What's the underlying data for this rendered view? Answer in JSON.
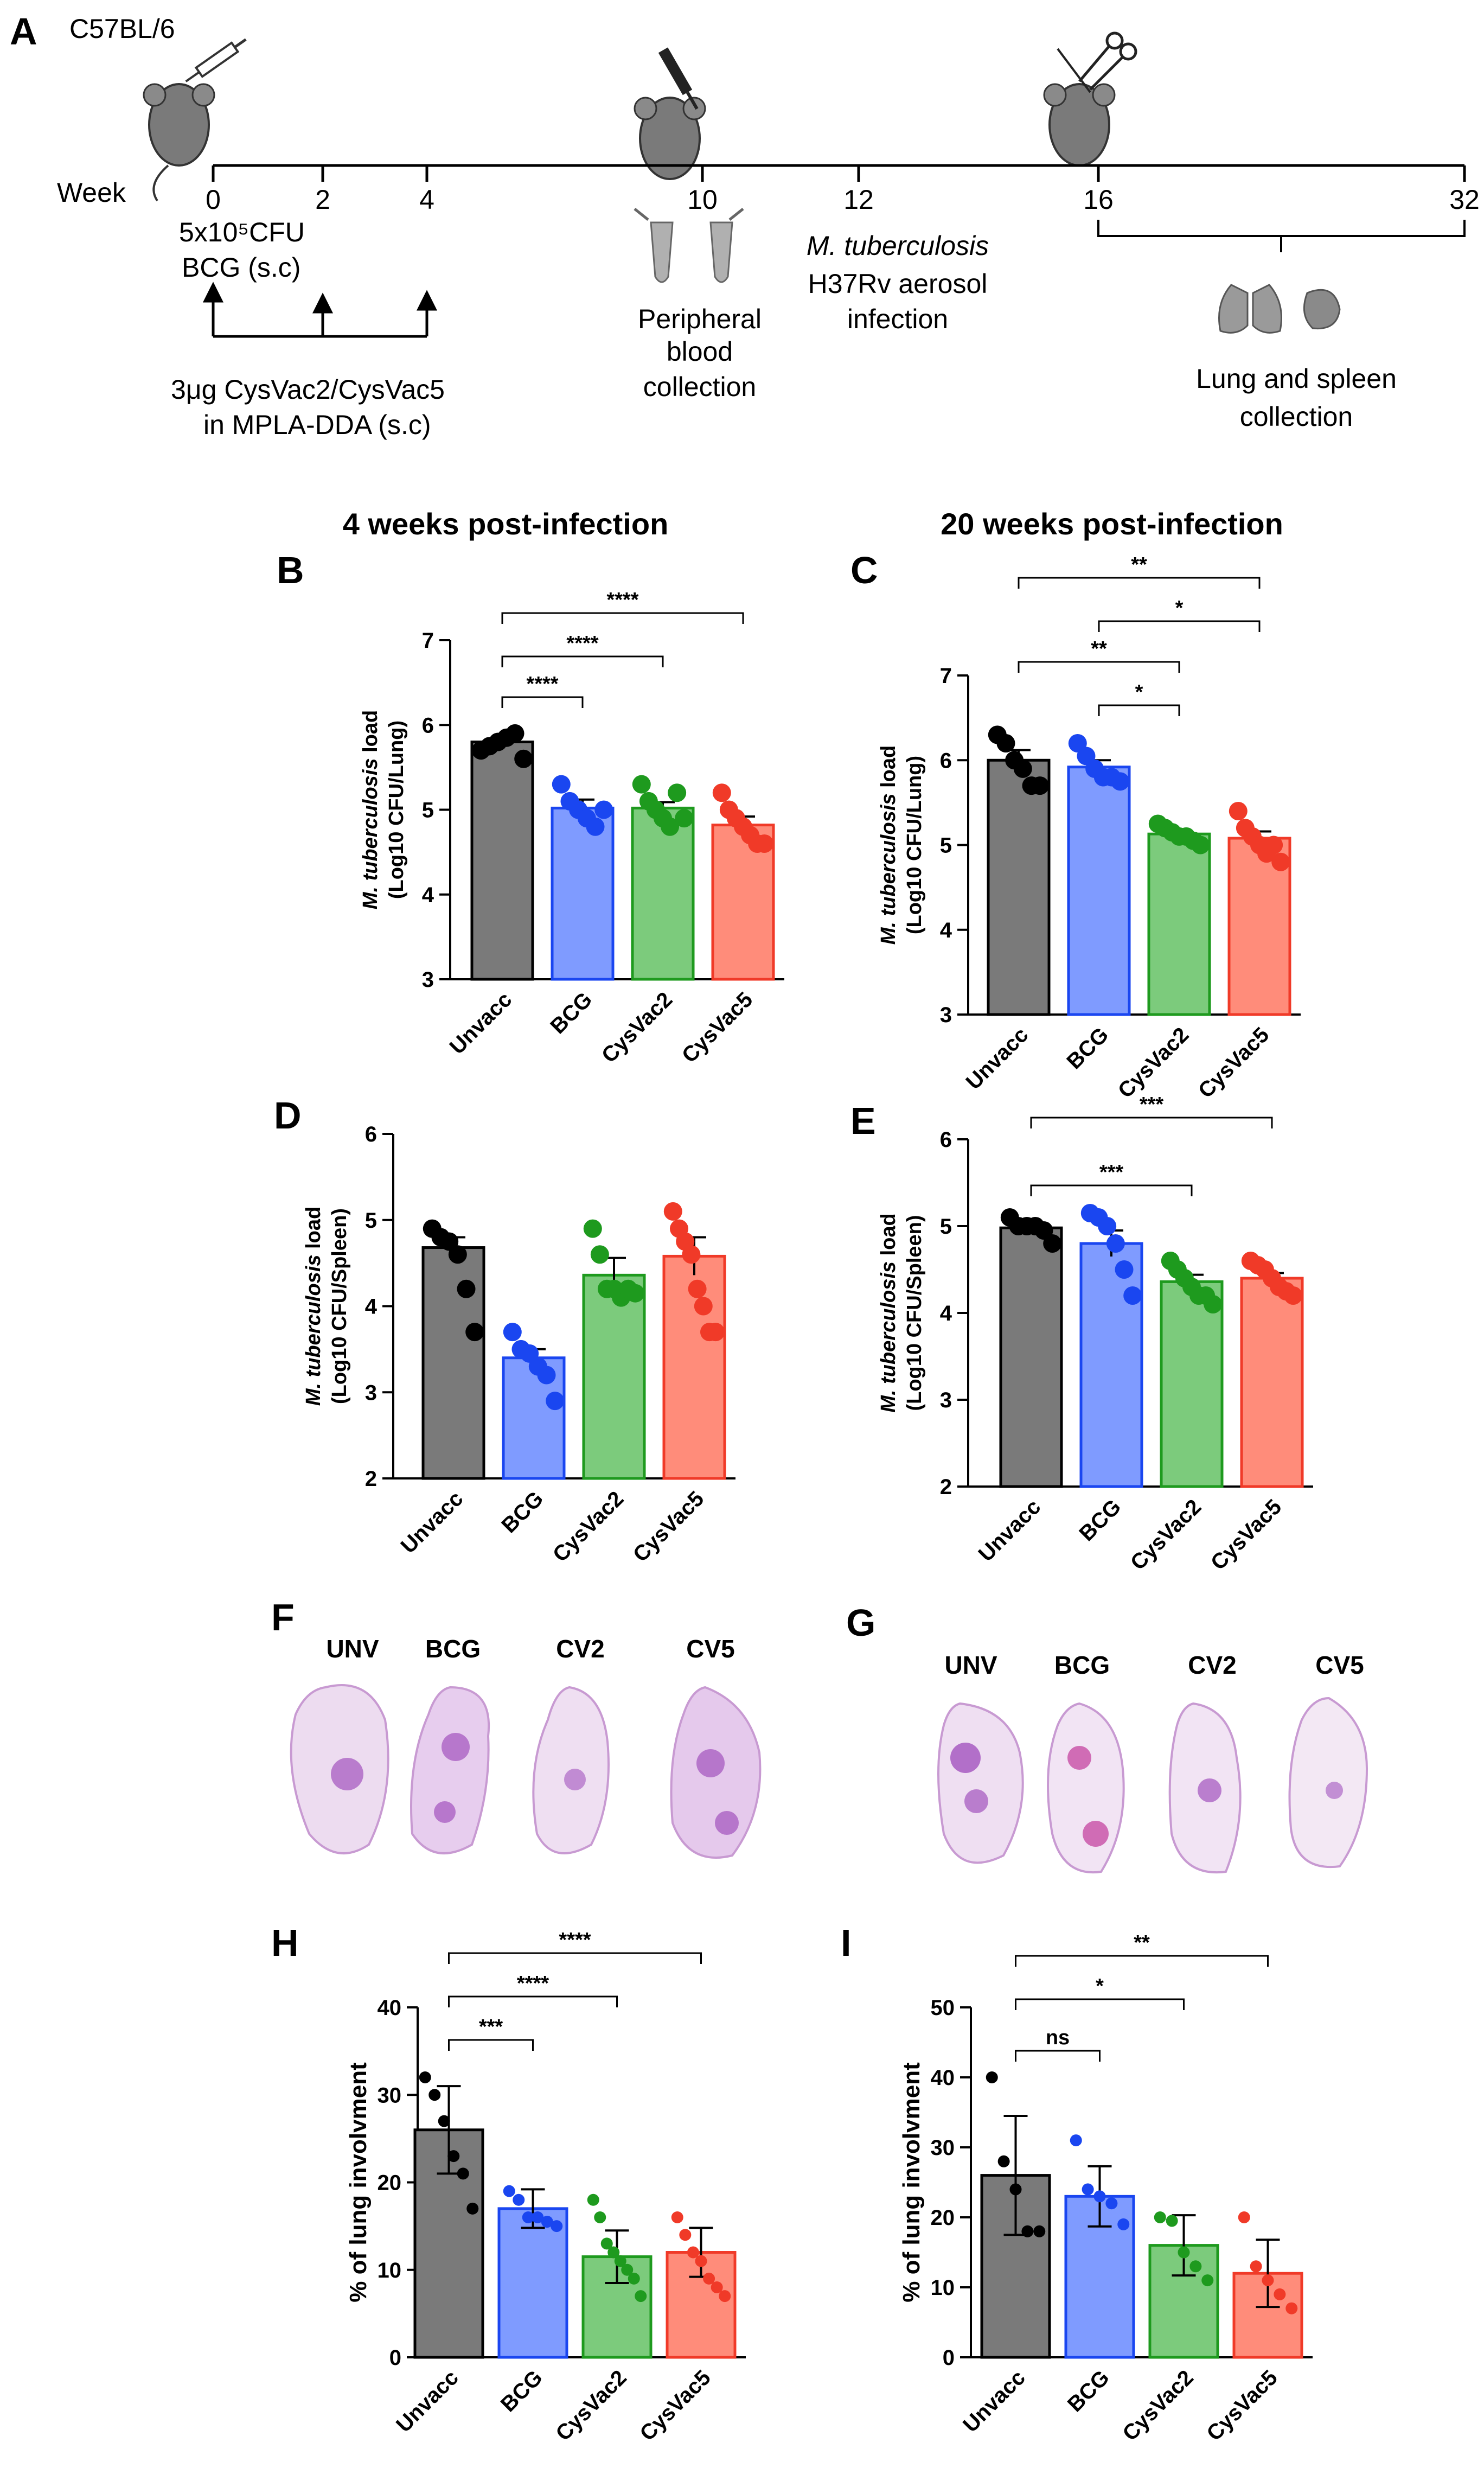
{
  "timeline": {
    "panel_label": "A",
    "strain": "C57BL/6",
    "axis_label": "Week",
    "ticks": [
      "0",
      "2",
      "4",
      "10",
      "12",
      "16",
      "32"
    ],
    "bcg_line1": "5x10⁵CFU",
    "bcg_line2": "BCG (s.c)",
    "boost_line1": "3μg CysVac2/CysVac5",
    "boost_line2": "in MPLA-DDA (s.c)",
    "blood_line1": "Peripheral",
    "blood_line2": "blood",
    "blood_line3": "collection",
    "infect_line1": "M. tuberculosis",
    "infect_line2": "H37Rv aerosol",
    "infect_line3": "infection",
    "collect_line1": "Lung and spleen",
    "collect_line2": "collection"
  },
  "headings": {
    "left": "4 weeks post-infection",
    "right": "20 weeks post-infection"
  },
  "histology": {
    "F": {
      "label": "F",
      "groups": [
        "UNV",
        "BCG",
        "CV2",
        "CV5"
      ]
    },
    "G": {
      "label": "G",
      "groups": [
        "UNV",
        "BCG",
        "CV2",
        "CV5"
      ]
    }
  },
  "colors": {
    "Unvacc": "#7a7a7a",
    "BCG": "#7f9bff",
    "CysVac2": "#7ccb7c",
    "CysVac5": "#ff8c7a",
    "dot_Unvacc": "#000000",
    "dot_BCG": "#1a46f0",
    "dot_CysVac2": "#1e9a1e",
    "dot_CysVac5": "#f03a28"
  },
  "chart_data": [
    {
      "id": "B",
      "label": "B",
      "type": "bar",
      "categories": [
        "Unvacc",
        "BCG",
        "CysVac2",
        "CysVac5"
      ],
      "values": [
        5.8,
        5.02,
        5.02,
        4.82
      ],
      "error": [
        0.05,
        0.1,
        0.07,
        0.1
      ],
      "points": [
        [
          5.7,
          5.75,
          5.8,
          5.85,
          5.9,
          5.6
        ],
        [
          5.3,
          5.1,
          5.0,
          4.9,
          4.8,
          5.0
        ],
        [
          5.3,
          5.1,
          5.0,
          4.9,
          4.8,
          5.2,
          4.9
        ],
        [
          5.2,
          5.0,
          4.9,
          4.8,
          4.7,
          4.6,
          4.6
        ]
      ],
      "ylabel_italic": "M. tuberculosis",
      "ylabel_rest": " load",
      "ylabel2": "(Log10 CFU/Lung)",
      "ylim": [
        3,
        7
      ],
      "yticks": [
        "3",
        "4",
        "5",
        "6",
        "7"
      ],
      "comparisons": [
        {
          "from": 0,
          "to": 1,
          "text": "****"
        },
        {
          "from": 0,
          "to": 2,
          "text": "****"
        },
        {
          "from": 0,
          "to": 3,
          "text": "****"
        }
      ]
    },
    {
      "id": "C",
      "label": "C",
      "type": "bar",
      "categories": [
        "Unvacc",
        "BCG",
        "CysVac2",
        "CysVac5"
      ],
      "values": [
        6.0,
        5.92,
        5.13,
        5.08
      ],
      "error": [
        0.12,
        0.08,
        0.04,
        0.08
      ],
      "points": [
        [
          6.3,
          6.2,
          6.0,
          5.9,
          5.7,
          5.7
        ],
        [
          6.2,
          6.05,
          5.9,
          5.8,
          5.8,
          5.75
        ],
        [
          5.25,
          5.2,
          5.15,
          5.1,
          5.1,
          5.05,
          5.0
        ],
        [
          5.4,
          5.2,
          5.1,
          5.0,
          4.9,
          5.0,
          4.8
        ]
      ],
      "ylabel_italic": "M. tuberculosis",
      "ylabel_rest": " load",
      "ylabel2": "(Log10 CFU/Lung)",
      "ylim": [
        3,
        7
      ],
      "yticks": [
        "3",
        "4",
        "5",
        "6",
        "7"
      ],
      "comparisons": [
        {
          "from": 1,
          "to": 2,
          "text": "*"
        },
        {
          "from": 0,
          "to": 2,
          "text": "**"
        },
        {
          "from": 1,
          "to": 3,
          "text": "*"
        },
        {
          "from": 0,
          "to": 3,
          "text": "**"
        }
      ]
    },
    {
      "id": "D",
      "label": "D",
      "type": "bar",
      "categories": [
        "Unvacc",
        "BCG",
        "CysVac2",
        "CysVac5"
      ],
      "values": [
        4.68,
        3.4,
        4.36,
        4.58
      ],
      "error": [
        0.12,
        0.1,
        0.2,
        0.22
      ],
      "points": [
        [
          4.9,
          4.8,
          4.75,
          4.6,
          4.2,
          3.7
        ],
        [
          3.7,
          3.5,
          3.45,
          3.3,
          3.2,
          2.9
        ],
        [
          4.9,
          4.6,
          4.2,
          4.2,
          4.1,
          4.2,
          4.15
        ],
        [
          5.1,
          4.9,
          4.75,
          4.6,
          4.2,
          4.0,
          3.7,
          3.7
        ]
      ],
      "ylabel_italic": "M. tuberculosis",
      "ylabel_rest": " load",
      "ylabel2": "(Log10 CFU/Spleen)",
      "ylim": [
        2,
        6
      ],
      "yticks": [
        "2",
        "3",
        "4",
        "5",
        "6"
      ],
      "comparisons": []
    },
    {
      "id": "E",
      "label": "E",
      "type": "bar",
      "categories": [
        "Unvacc",
        "BCG",
        "CysVac2",
        "CysVac5"
      ],
      "values": [
        4.98,
        4.8,
        4.36,
        4.4
      ],
      "error": [
        0.05,
        0.15,
        0.08,
        0.06
      ],
      "points": [
        [
          5.1,
          5.0,
          5.0,
          5.0,
          4.95,
          4.8
        ],
        [
          5.15,
          5.1,
          5.0,
          4.8,
          4.5,
          4.2
        ],
        [
          4.6,
          4.5,
          4.4,
          4.3,
          4.2,
          4.2,
          4.1
        ],
        [
          4.6,
          4.55,
          4.5,
          4.4,
          4.3,
          4.25,
          4.2
        ]
      ],
      "ylabel_italic": "M. tuberculosis",
      "ylabel_rest": " load",
      "ylabel2": "(Log10 CFU/Spleen)",
      "ylim": [
        2,
        6
      ],
      "yticks": [
        "2",
        "3",
        "4",
        "5",
        "6"
      ],
      "comparisons": [
        {
          "from": 0,
          "to": 2,
          "text": "***"
        },
        {
          "from": 0,
          "to": 3,
          "text": "***"
        }
      ]
    },
    {
      "id": "H",
      "label": "H",
      "type": "bar",
      "categories": [
        "Unvacc",
        "BCG",
        "CysVac2",
        "CysVac5"
      ],
      "values": [
        26.0,
        17.0,
        11.5,
        12.0
      ],
      "error": [
        5.0,
        2.2,
        3.0,
        2.8
      ],
      "points": [
        [
          32,
          30,
          27,
          23,
          21,
          17
        ],
        [
          19,
          18,
          16,
          16,
          15.5,
          15
        ],
        [
          18,
          16,
          13,
          12,
          11,
          10,
          9,
          7
        ],
        [
          16,
          14,
          12,
          11,
          9,
          8,
          7
        ]
      ],
      "ylabel_italic": "",
      "ylabel_rest": "% of lung involvment",
      "ylabel2": "",
      "ylim": [
        0,
        40
      ],
      "yticks": [
        "0",
        "10",
        "20",
        "30",
        "40"
      ],
      "comparisons": [
        {
          "from": 0,
          "to": 1,
          "text": "***"
        },
        {
          "from": 0,
          "to": 2,
          "text": "****"
        },
        {
          "from": 0,
          "to": 3,
          "text": "****"
        }
      ]
    },
    {
      "id": "I",
      "label": "I",
      "type": "bar",
      "categories": [
        "Unvacc",
        "BCG",
        "CysVac2",
        "CysVac5"
      ],
      "values": [
        26.0,
        23.0,
        16.0,
        12.0
      ],
      "error": [
        8.5,
        4.3,
        4.3,
        4.8
      ],
      "points": [
        [
          40,
          28,
          24,
          18,
          18
        ],
        [
          31,
          24,
          23,
          22,
          19
        ],
        [
          20,
          19.5,
          15,
          13,
          11
        ],
        [
          20,
          13,
          11,
          9,
          7
        ]
      ],
      "ylabel_italic": "",
      "ylabel_rest": "% of lung involvment",
      "ylabel2": "",
      "ylim": [
        0,
        50
      ],
      "yticks": [
        "0",
        "10",
        "20",
        "30",
        "40",
        "50"
      ],
      "comparisons": [
        {
          "from": 0,
          "to": 1,
          "text": "ns"
        },
        {
          "from": 0,
          "to": 2,
          "text": "*"
        },
        {
          "from": 0,
          "to": 3,
          "text": "**"
        }
      ]
    }
  ]
}
